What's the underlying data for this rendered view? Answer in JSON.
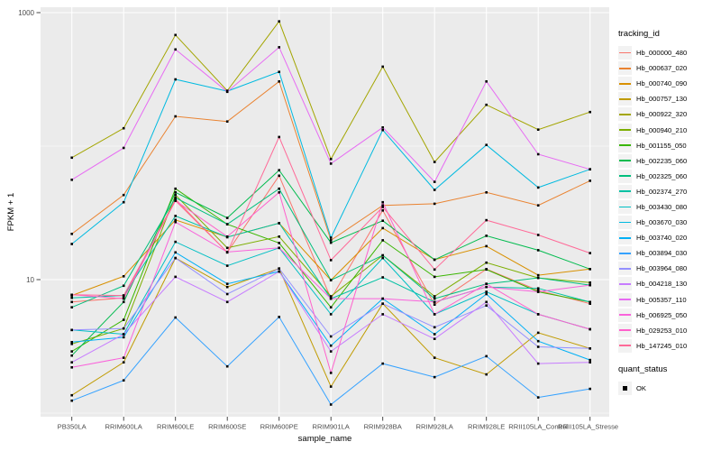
{
  "figure": {
    "background": "#FFFFFF",
    "panel_background": "#EBEBEB",
    "gridline_color": "#FFFFFF",
    "axis_text_color": "#4D4D4D",
    "axis_tick_color": "#333333",
    "axis_title_color": "#000000",
    "point_color": "#000000"
  },
  "chart_data": {
    "type": "line",
    "title": "",
    "xlabel": "sample_name",
    "ylabel": "FPKM + 1",
    "y_scale": "log10",
    "ylim": [
      0.97,
      1100
    ],
    "grid": true,
    "legend_position": "right",
    "y_major_ticks": [
      {
        "label": "1000",
        "value": 1000
      },
      {
        "label": "10",
        "value": 10
      }
    ],
    "y_minor_gridlines": [
      100,
      1
    ],
    "categories": [
      "PB350LA",
      "RRIM600LA",
      "RRIM600LE",
      "RRIM600SE",
      "RRIM600PE",
      "RRIM901LA",
      "RRIM928BA",
      "RRIM928LA",
      "RRIM928LE",
      "RRII105LA_Control",
      "RRII105LA_Stressed"
    ],
    "legend": {
      "title": "tracking_id"
    },
    "legend2": {
      "title": "quant_status",
      "items": [
        {
          "label": "OK"
        }
      ]
    },
    "point_marker": {
      "shape": "square",
      "color": "#000000",
      "meaning": "quant_status OK"
    },
    "series": [
      {
        "name": "Hb_000000_480",
        "color": "#F8766D",
        "values": [
          6.8,
          7.3,
          40,
          16,
          60,
          7.2,
          33,
          6.5,
          12,
          8.3,
          6.6
        ]
      },
      {
        "name": "Hb_000637_020",
        "color": "#EA8331",
        "values": [
          22,
          43,
          167,
          153,
          305,
          19.7,
          36,
          37,
          45,
          36,
          55
        ]
      },
      {
        "name": "Hb_000740_090",
        "color": "#D89000",
        "values": [
          7.6,
          10.6,
          28,
          20.8,
          26.5,
          9.9,
          24.3,
          14.1,
          17.8,
          10.8,
          12
        ]
      },
      {
        "name": "Hb_000757_130",
        "color": "#C09B00",
        "values": [
          1.36,
          2.4,
          14.5,
          8.8,
          12.1,
          1.58,
          6.6,
          2.6,
          1.95,
          4,
          3.05
        ]
      },
      {
        "name": "Hb_000922_320",
        "color": "#A3A500",
        "values": [
          82,
          136,
          680,
          260,
          860,
          80,
          394,
          76,
          204,
          133,
          180
        ]
      },
      {
        "name": "Hb_000940_210",
        "color": "#7CAE00",
        "values": [
          3.3,
          4.3,
          43,
          17.3,
          21,
          7.5,
          15.2,
          7.5,
          13.4,
          10.3,
          9.5
        ]
      },
      {
        "name": "Hb_001155_050",
        "color": "#39B600",
        "values": [
          2.9,
          5,
          48,
          26,
          18.8,
          6.2,
          19.7,
          10.5,
          11.9,
          8.1,
          6.8
        ]
      },
      {
        "name": "Hb_002235_060",
        "color": "#00BB4E",
        "values": [
          2.7,
          6.8,
          45,
          29,
          66,
          18.9,
          27.6,
          14.1,
          21.3,
          16.6,
          12
        ]
      },
      {
        "name": "Hb_002325_060",
        "color": "#00BF7D",
        "values": [
          6.2,
          9,
          41,
          26,
          48,
          9.9,
          15.2,
          7.2,
          9.3,
          10.3,
          9.1
        ]
      },
      {
        "name": "Hb_002374_270",
        "color": "#00C1A3",
        "values": [
          7.3,
          7.6,
          30,
          20.8,
          26.5,
          7.2,
          10.4,
          6.8,
          8.8,
          8.6,
          6.8
        ]
      },
      {
        "name": "Hb_003430_080",
        "color": "#00BFC4",
        "values": [
          4.2,
          3.9,
          19.2,
          12.7,
          17.3,
          5.5,
          14.5,
          5.5,
          8.1,
          5.5,
          4.25
        ]
      },
      {
        "name": "Hb_003670_030",
        "color": "#00BAE0",
        "values": [
          18.5,
          38,
          316,
          258,
          360,
          20.6,
          132,
          47,
          102,
          49,
          67
        ]
      },
      {
        "name": "Hb_003740_020",
        "color": "#00B0F6",
        "values": [
          3.4,
          3.7,
          16,
          9.3,
          11.5,
          3.2,
          7.2,
          3.9,
          7.8,
          3.46,
          2.5
        ]
      },
      {
        "name": "Hb_003894_030",
        "color": "#35A2FF",
        "values": [
          1.24,
          1.76,
          5.2,
          2.24,
          5.25,
          1.16,
          2.35,
          1.86,
          2.67,
          1.31,
          1.52
        ]
      },
      {
        "name": "Hb_003964_080",
        "color": "#9590FF",
        "values": [
          4.2,
          4.3,
          14.5,
          7.8,
          12.1,
          3.75,
          6.6,
          4.4,
          6.4,
          3.14,
          3.05
        ]
      },
      {
        "name": "Hb_004218_130",
        "color": "#C77CFF",
        "values": [
          2.4,
          3.9,
          10.5,
          6.8,
          11.5,
          2.9,
          5.5,
          3.6,
          6.8,
          2.35,
          2.4
        ]
      },
      {
        "name": "Hb_005357_110",
        "color": "#E76BF3",
        "values": [
          56,
          97,
          530,
          255,
          550,
          74,
          138,
          54,
          305,
          87,
          67
        ]
      },
      {
        "name": "Hb_006925_050",
        "color": "#FA62DB",
        "values": [
          2.2,
          2.6,
          27,
          16.1,
          17.3,
          7.2,
          7.2,
          6.8,
          8.8,
          8.1,
          9.1
        ]
      },
      {
        "name": "Hb_029253_010",
        "color": "#FF61CC",
        "values": [
          7.7,
          7.2,
          39,
          21,
          45,
          2,
          38,
          5.5,
          9.3,
          5.5,
          4.25
        ]
      },
      {
        "name": "Hb_147245_010",
        "color": "#FF6A98",
        "values": [
          7.7,
          7.6,
          39,
          16,
          117,
          14,
          35,
          11.9,
          27.9,
          21.6,
          15.8
        ]
      }
    ]
  }
}
